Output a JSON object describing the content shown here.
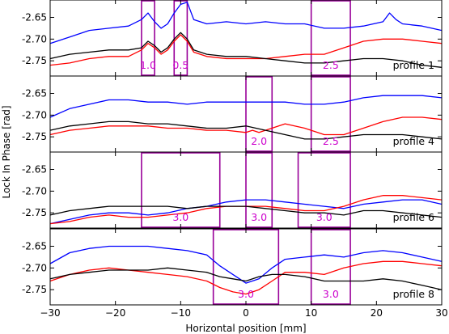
{
  "chart_data": {
    "type": "line",
    "xlabel": "Horizontal position [mm]",
    "ylabel": "Lock In Phase [rad]",
    "xlim": [
      -30,
      30
    ],
    "ylim": [
      -2.785,
      -2.61
    ],
    "x_ticks": [
      -30,
      -20,
      -10,
      0,
      10,
      20,
      30
    ],
    "x_tick_labels": [
      "−30",
      "−20",
      "−10",
      "0",
      "10",
      "20",
      "30"
    ],
    "y_ticks": [
      -2.65,
      -2.7,
      -2.75
    ],
    "y_tick_labels": [
      "-2.65",
      "-2.70",
      "-2.75"
    ],
    "grid": false,
    "series_colors": {
      "blue": "#0000ff",
      "red": "#ff0000",
      "black": "#000000"
    },
    "box_color": "#990099",
    "box_label_color": "#cc00cc",
    "panels": [
      {
        "label": "profile 1",
        "boxes": [
          {
            "x0": -16,
            "x1": -14,
            "label": "1.0"
          },
          {
            "x0": -11,
            "x1": -9,
            "label": "0.5"
          },
          {
            "x0": 10,
            "x1": 16,
            "label": "2.5"
          }
        ],
        "series": [
          {
            "color": "blue",
            "x": [
              -30,
              -27,
              -24,
              -21,
              -18,
              -16,
              -15,
              -14,
              -13,
              -12,
              -11,
              -10,
              -9,
              -8,
              -6,
              -3,
              0,
              3,
              6,
              9,
              12,
              15,
              18,
              21,
              22,
              23,
              24,
              27,
              30
            ],
            "y": [
              -2.71,
              -2.695,
              -2.68,
              -2.675,
              -2.67,
              -2.655,
              -2.64,
              -2.66,
              -2.675,
              -2.665,
              -2.64,
              -2.62,
              -2.615,
              -2.655,
              -2.665,
              -2.66,
              -2.665,
              -2.66,
              -2.665,
              -2.665,
              -2.675,
              -2.675,
              -2.67,
              -2.66,
              -2.64,
              -2.655,
              -2.665,
              -2.67,
              -2.68
            ]
          },
          {
            "color": "red",
            "x": [
              -30,
              -27,
              -24,
              -21,
              -18,
              -16,
              -15,
              -14,
              -13,
              -12,
              -11,
              -10,
              -9,
              -8,
              -6,
              -3,
              0,
              3,
              6,
              9,
              12,
              15,
              18,
              21,
              24,
              27,
              30
            ],
            "y": [
              -2.76,
              -2.755,
              -2.745,
              -2.74,
              -2.74,
              -2.725,
              -2.71,
              -2.72,
              -2.735,
              -2.725,
              -2.705,
              -2.69,
              -2.705,
              -2.73,
              -2.74,
              -2.745,
              -2.745,
              -2.745,
              -2.74,
              -2.735,
              -2.735,
              -2.72,
              -2.705,
              -2.7,
              -2.7,
              -2.705,
              -2.71
            ]
          },
          {
            "color": "black",
            "x": [
              -30,
              -27,
              -24,
              -21,
              -18,
              -16,
              -15,
              -14,
              -13,
              -12,
              -11,
              -10,
              -9,
              -8,
              -6,
              -3,
              0,
              3,
              6,
              9,
              12,
              15,
              18,
              21,
              24,
              27,
              30
            ],
            "y": [
              -2.745,
              -2.735,
              -2.73,
              -2.725,
              -2.725,
              -2.72,
              -2.705,
              -2.715,
              -2.73,
              -2.72,
              -2.7,
              -2.685,
              -2.7,
              -2.725,
              -2.735,
              -2.74,
              -2.74,
              -2.745,
              -2.75,
              -2.755,
              -2.755,
              -2.75,
              -2.745,
              -2.745,
              -2.75,
              -2.76,
              -2.765
            ]
          }
        ]
      },
      {
        "label": "profile 4",
        "boxes": [
          {
            "x0": 0,
            "x1": 4,
            "label": "2.0"
          },
          {
            "x0": 10,
            "x1": 16,
            "label": "2.5"
          }
        ],
        "series": [
          {
            "color": "blue",
            "x": [
              -30,
              -27,
              -24,
              -21,
              -18,
              -15,
              -12,
              -9,
              -6,
              -3,
              0,
              3,
              6,
              9,
              12,
              15,
              18,
              21,
              24,
              27,
              30
            ],
            "y": [
              -2.705,
              -2.685,
              -2.675,
              -2.665,
              -2.665,
              -2.67,
              -2.67,
              -2.675,
              -2.67,
              -2.67,
              -2.67,
              -2.67,
              -2.67,
              -2.675,
              -2.675,
              -2.67,
              -2.66,
              -2.655,
              -2.655,
              -2.655,
              -2.66
            ]
          },
          {
            "color": "red",
            "x": [
              -30,
              -27,
              -24,
              -21,
              -18,
              -15,
              -12,
              -9,
              -6,
              -3,
              0,
              1,
              2,
              3,
              6,
              9,
              12,
              15,
              18,
              21,
              24,
              27,
              30
            ],
            "y": [
              -2.745,
              -2.735,
              -2.73,
              -2.725,
              -2.725,
              -2.725,
              -2.73,
              -2.73,
              -2.735,
              -2.735,
              -2.74,
              -2.735,
              -2.74,
              -2.735,
              -2.72,
              -2.73,
              -2.745,
              -2.745,
              -2.73,
              -2.715,
              -2.705,
              -2.705,
              -2.71
            ]
          },
          {
            "color": "black",
            "x": [
              -30,
              -27,
              -24,
              -21,
              -18,
              -15,
              -12,
              -9,
              -6,
              -3,
              0,
              3,
              6,
              9,
              12,
              15,
              18,
              21,
              24,
              27,
              30
            ],
            "y": [
              -2.735,
              -2.725,
              -2.72,
              -2.715,
              -2.715,
              -2.72,
              -2.72,
              -2.725,
              -2.73,
              -2.73,
              -2.725,
              -2.735,
              -2.745,
              -2.755,
              -2.755,
              -2.75,
              -2.745,
              -2.745,
              -2.745,
              -2.75,
              -2.755
            ]
          }
        ]
      },
      {
        "label": "profile 6",
        "boxes": [
          {
            "x0": -16,
            "x1": -4,
            "label": "3.0"
          },
          {
            "x0": 0,
            "x1": 4,
            "label": "3.0"
          },
          {
            "x0": 8,
            "x1": 16,
            "label": "3.0"
          }
        ],
        "series": [
          {
            "color": "blue",
            "x": [
              -30,
              -27,
              -24,
              -21,
              -18,
              -15,
              -12,
              -9,
              -6,
              -3,
              0,
              3,
              6,
              9,
              12,
              15,
              18,
              21,
              24,
              27,
              30
            ],
            "y": [
              -2.775,
              -2.765,
              -2.755,
              -2.75,
              -2.75,
              -2.755,
              -2.75,
              -2.74,
              -2.735,
              -2.725,
              -2.72,
              -2.72,
              -2.725,
              -2.73,
              -2.735,
              -2.74,
              -2.73,
              -2.725,
              -2.72,
              -2.72,
              -2.73
            ]
          },
          {
            "color": "red",
            "x": [
              -30,
              -27,
              -24,
              -21,
              -18,
              -15,
              -12,
              -9,
              -6,
              -3,
              0,
              3,
              6,
              9,
              12,
              15,
              18,
              21,
              24,
              27,
              30
            ],
            "y": [
              -2.775,
              -2.77,
              -2.76,
              -2.755,
              -2.76,
              -2.76,
              -2.755,
              -2.75,
              -2.74,
              -2.735,
              -2.735,
              -2.735,
              -2.74,
              -2.745,
              -2.745,
              -2.735,
              -2.72,
              -2.71,
              -2.71,
              -2.715,
              -2.72
            ]
          },
          {
            "color": "black",
            "x": [
              -30,
              -27,
              -24,
              -21,
              -18,
              -15,
              -12,
              -9,
              -6,
              -3,
              0,
              3,
              6,
              9,
              12,
              15,
              18,
              21,
              24,
              27,
              30
            ],
            "y": [
              -2.755,
              -2.745,
              -2.74,
              -2.735,
              -2.735,
              -2.735,
              -2.735,
              -2.74,
              -2.735,
              -2.735,
              -2.735,
              -2.74,
              -2.745,
              -2.75,
              -2.75,
              -2.755,
              -2.745,
              -2.745,
              -2.75,
              -2.755,
              -2.76
            ]
          }
        ]
      },
      {
        "label": "profile 8",
        "boxes": [
          {
            "x0": -5,
            "x1": 5,
            "label": "3.0"
          },
          {
            "x0": 10,
            "x1": 16,
            "label": "3.0"
          }
        ],
        "series": [
          {
            "color": "blue",
            "x": [
              -30,
              -27,
              -24,
              -21,
              -18,
              -15,
              -12,
              -9,
              -6,
              -4,
              -2,
              0,
              2,
              4,
              6,
              9,
              12,
              15,
              18,
              21,
              24,
              27,
              30
            ],
            "y": [
              -2.69,
              -2.665,
              -2.655,
              -2.65,
              -2.65,
              -2.65,
              -2.655,
              -2.66,
              -2.67,
              -2.695,
              -2.715,
              -2.735,
              -2.725,
              -2.7,
              -2.68,
              -2.675,
              -2.67,
              -2.675,
              -2.665,
              -2.66,
              -2.665,
              -2.675,
              -2.685
            ]
          },
          {
            "color": "red",
            "x": [
              -30,
              -27,
              -24,
              -21,
              -18,
              -15,
              -12,
              -9,
              -6,
              -4,
              -2,
              0,
              2,
              4,
              6,
              9,
              12,
              15,
              18,
              21,
              24,
              27,
              30
            ],
            "y": [
              -2.73,
              -2.715,
              -2.705,
              -2.7,
              -2.705,
              -2.71,
              -2.715,
              -2.72,
              -2.73,
              -2.745,
              -2.755,
              -2.76,
              -2.75,
              -2.73,
              -2.71,
              -2.71,
              -2.715,
              -2.7,
              -2.69,
              -2.685,
              -2.685,
              -2.69,
              -2.695
            ]
          },
          {
            "color": "black",
            "x": [
              -30,
              -27,
              -24,
              -21,
              -18,
              -15,
              -12,
              -9,
              -6,
              -4,
              -2,
              0,
              2,
              4,
              6,
              9,
              12,
              15,
              18,
              21,
              24,
              27,
              30
            ],
            "y": [
              -2.725,
              -2.715,
              -2.71,
              -2.705,
              -2.705,
              -2.705,
              -2.7,
              -2.705,
              -2.71,
              -2.72,
              -2.725,
              -2.73,
              -2.72,
              -2.715,
              -2.715,
              -2.72,
              -2.73,
              -2.73,
              -2.73,
              -2.725,
              -2.73,
              -2.74,
              -2.75
            ]
          }
        ]
      }
    ]
  }
}
